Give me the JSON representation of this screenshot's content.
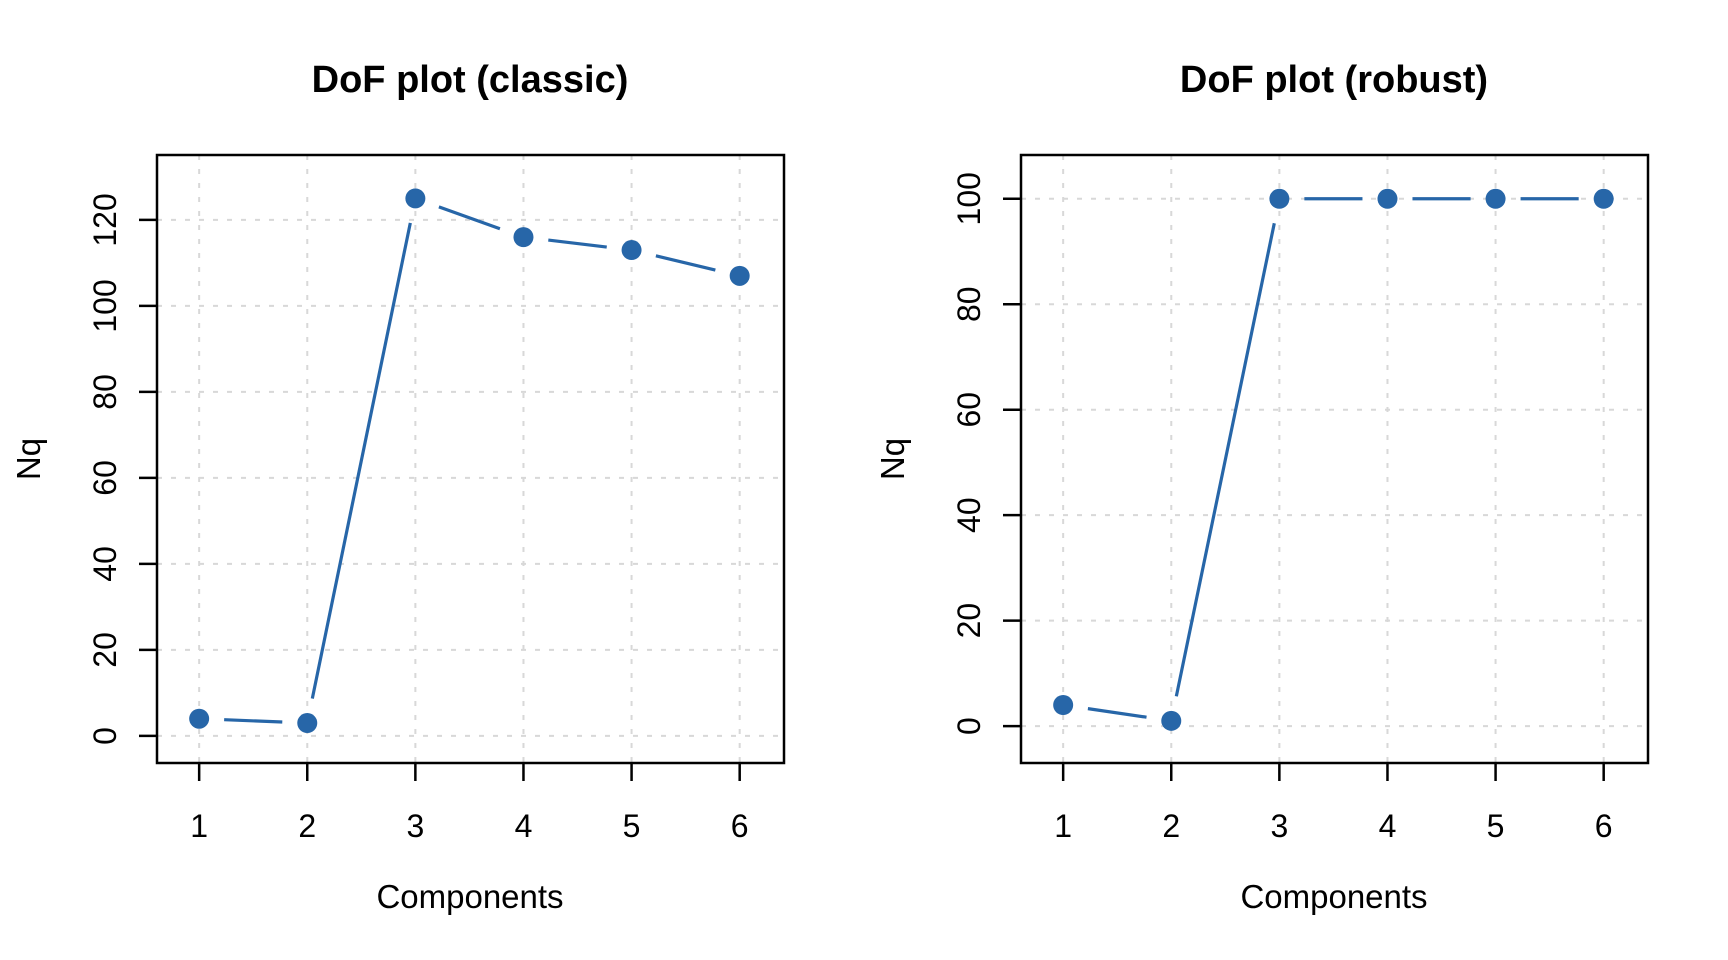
{
  "page": {
    "background": "#ffffff",
    "figure_type": "R base graphics, two side-by-side line plots"
  },
  "chart_data": [
    {
      "type": "line",
      "title": "DoF plot (classic)",
      "xlabel": "Components",
      "ylabel": "Nq",
      "x": [
        1,
        2,
        3,
        4,
        5,
        6
      ],
      "values": [
        4,
        3,
        125,
        116,
        113,
        107
      ],
      "xticks": [
        1,
        2,
        3,
        4,
        5,
        6
      ],
      "yticks": [
        0,
        20,
        40,
        60,
        80,
        100,
        120
      ],
      "xlim": [
        0.61,
        6.41
      ],
      "ylim": [
        -6.3,
        135.1
      ],
      "grid": "dashed both axes at ticks",
      "legend": "none",
      "marker": "filled-circle",
      "line_type": "segments-between-points-with-gaps",
      "series_color": "#2766a8",
      "grid_color": "#d8d8d8",
      "axis_color": "#000000",
      "text_color": "#000000"
    },
    {
      "type": "line",
      "title": "DoF plot (robust)",
      "xlabel": "Components",
      "ylabel": "Nq",
      "x": [
        1,
        2,
        3,
        4,
        5,
        6
      ],
      "values": [
        4,
        1,
        100,
        100,
        100,
        100
      ],
      "xticks": [
        1,
        2,
        3,
        4,
        5,
        6
      ],
      "yticks": [
        0,
        20,
        40,
        60,
        80,
        100
      ],
      "xlim": [
        0.61,
        6.41
      ],
      "ylim": [
        -7.0,
        108.3
      ],
      "grid": "dashed both axes at ticks",
      "legend": "none",
      "marker": "filled-circle",
      "line_type": "segments-between-points-with-gaps",
      "series_color": "#2766a8",
      "grid_color": "#d8d8d8",
      "axis_color": "#000000",
      "text_color": "#000000"
    }
  ]
}
